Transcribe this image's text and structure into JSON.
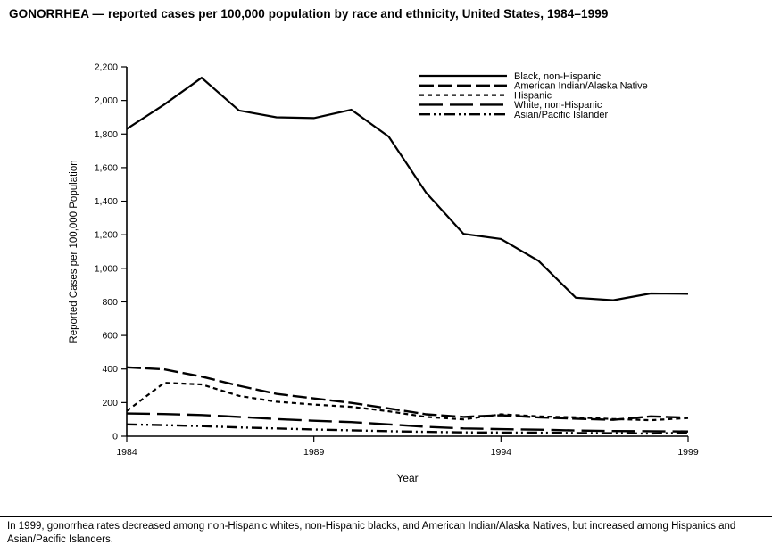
{
  "title": "GONORRHEA — reported cases per 100,000 population by race and ethnicity, United States, 1984–1999",
  "footnote": "In 1999, gonorrhea rates decreased among non-Hispanic whites, non-Hispanic blacks, and American Indian/Alaska Natives, but increased among Hispanics and Asian/Pacific Islanders.",
  "chart_data": {
    "type": "line",
    "title": "GONORRHEA — reported cases per 100,000 population by race and ethnicity, United States, 1984–1999",
    "xlabel": "Year",
    "ylabel": "Reported Cases per 100,000 Population",
    "x": [
      1984,
      1985,
      1986,
      1987,
      1988,
      1989,
      1990,
      1991,
      1992,
      1993,
      1994,
      1995,
      1996,
      1997,
      1998,
      1999
    ],
    "xticks": [
      1984,
      1989,
      1994,
      1999
    ],
    "ylim": [
      0,
      2200
    ],
    "ytick_step": 200,
    "ytick_labels": [
      "0",
      "200",
      "400",
      "600",
      "800",
      "1,000",
      "1,200",
      "1,400",
      "1,600",
      "1,800",
      "2,000",
      "2,200"
    ],
    "grid": false,
    "legend_position": "top-right-inside",
    "line_color": "#000000",
    "series": [
      {
        "name": "Black, non-Hispanic",
        "dash": "",
        "width": 2.2,
        "values": [
          1830,
          1975,
          2135,
          1940,
          1900,
          1895,
          1945,
          1785,
          1450,
          1205,
          1175,
          1045,
          825,
          810,
          850,
          848
        ]
      },
      {
        "name": "American Indian/Alaska Native",
        "dash": "16,5",
        "width": 2.4,
        "values": [
          410,
          398,
          355,
          300,
          252,
          225,
          198,
          165,
          130,
          115,
          125,
          112,
          104,
          97,
          118,
          110
        ]
      },
      {
        "name": "Hispanic",
        "dash": "5,4",
        "width": 2.2,
        "values": [
          150,
          318,
          308,
          240,
          205,
          188,
          175,
          148,
          115,
          100,
          130,
          118,
          112,
          102,
          95,
          108
        ]
      },
      {
        "name": "White, non-Hispanic",
        "dash": "26,8",
        "width": 2.4,
        "values": [
          135,
          132,
          126,
          115,
          102,
          92,
          84,
          70,
          56,
          46,
          42,
          39,
          34,
          31,
          30,
          28
        ]
      },
      {
        "name": "Asian/Pacific Islander",
        "dash": "12,4,2,4,2,4",
        "width": 2.4,
        "values": [
          70,
          66,
          60,
          52,
          46,
          40,
          35,
          30,
          26,
          23,
          22,
          21,
          19,
          18,
          16,
          21
        ]
      }
    ]
  }
}
